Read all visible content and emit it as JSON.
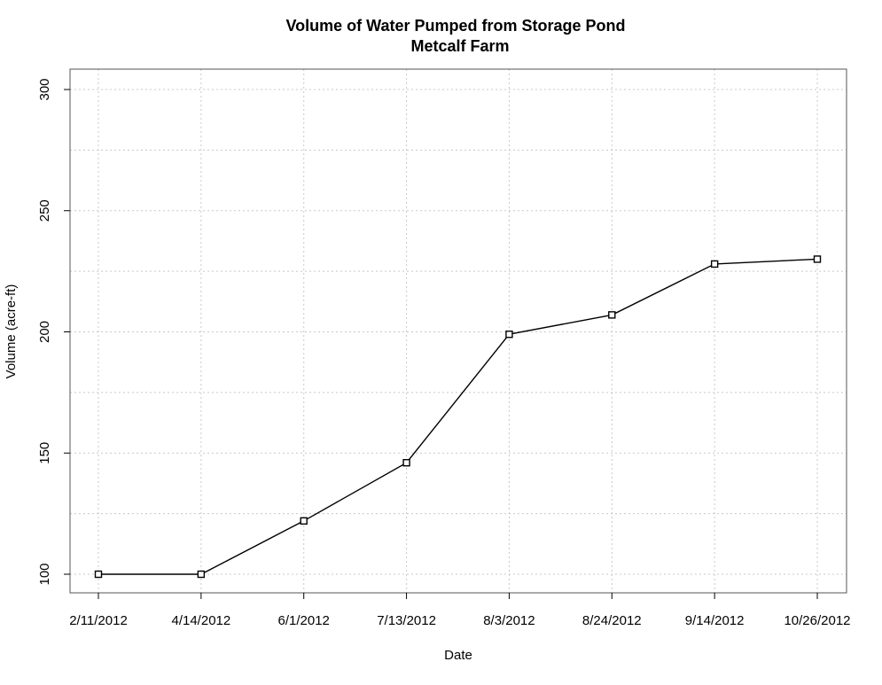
{
  "chart_data": {
    "type": "line",
    "title": "Volume of Water Pumped from Storage Pond",
    "subtitle": "Metcalf Farm",
    "xlabel": "Date",
    "ylabel": "Volume (acre-ft)",
    "categories": [
      "2/11/2012",
      "4/14/2012",
      "6/1/2012",
      "7/13/2012",
      "8/3/2012",
      "8/24/2012",
      "9/14/2012",
      "10/26/2012"
    ],
    "series": [
      {
        "values": [
          100,
          100,
          122,
          146,
          199,
          207,
          228,
          230
        ]
      }
    ],
    "ylim": [
      100,
      300
    ],
    "yticks": [
      100,
      150,
      200,
      250,
      300
    ],
    "grid": true,
    "marker": "open-square",
    "line_color": "#000000",
    "grid_color": "#c8c8c8"
  }
}
